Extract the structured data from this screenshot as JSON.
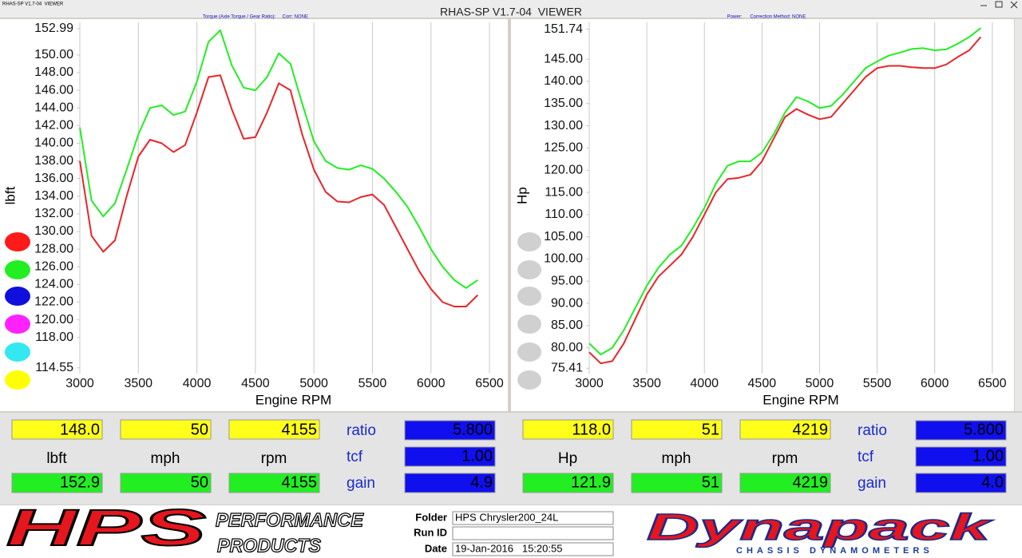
{
  "window": {
    "caption": "RHAS-SP V1.7-04  VIEWER",
    "title": "RHAS-SP V1.7-04  VIEWER"
  },
  "chart_data": [
    {
      "type": "line",
      "subtitle": "Torque (Axle Torque / Gear Ratio):     Corr: NONE",
      "x_label": "Engine RPM",
      "y_label": "lbft",
      "x": [
        3000,
        3100,
        3200,
        3300,
        3400,
        3500,
        3600,
        3700,
        3800,
        3900,
        4000,
        4100,
        4200,
        4300,
        4400,
        4500,
        4600,
        4700,
        4800,
        4900,
        5000,
        5100,
        5200,
        5300,
        5400,
        5500,
        5600,
        5700,
        5800,
        5900,
        6000,
        6100,
        6200,
        6300,
        6400
      ],
      "xlim": [
        3000,
        6650
      ],
      "xticks": [
        3000,
        3500,
        4000,
        4500,
        5000,
        5500,
        6000,
        6500
      ],
      "ylim": [
        113.9,
        153.7
      ],
      "yticks": [
        152.99,
        {
          "value": 150,
          "label": "150.00"
        },
        {
          "value": 148,
          "label": "148.00"
        },
        {
          "value": 146,
          "label": "146.00"
        },
        {
          "value": 144,
          "label": "144.00"
        },
        {
          "value": 142,
          "label": "142.00"
        },
        {
          "value": 140,
          "label": "140.00"
        },
        {
          "value": 138,
          "label": "138.00"
        },
        {
          "value": 136,
          "label": "136.00"
        },
        {
          "value": 134,
          "label": "134.00"
        },
        {
          "value": 132,
          "label": "132.00"
        },
        {
          "value": 130,
          "label": "130.00"
        },
        {
          "value": 128,
          "label": "128.00"
        },
        {
          "value": 126,
          "label": "126.00"
        },
        {
          "value": 124,
          "label": "124.00"
        },
        {
          "value": 122,
          "label": "122.00"
        },
        {
          "value": 120,
          "label": "120.00"
        },
        {
          "value": 118,
          "label": "118.00"
        },
        114.55
      ],
      "grid": "x",
      "series": [
        {
          "color": "#e8252a",
          "values": [
            138,
            129.5,
            127.7,
            129,
            134,
            138.5,
            140.4,
            140,
            139,
            139.8,
            143.5,
            147.5,
            147.7,
            143.8,
            140.5,
            140.7,
            143.5,
            146.8,
            146,
            141,
            137,
            134.5,
            133.4,
            133.3,
            133.9,
            134.2,
            133,
            130.5,
            128,
            125.5,
            123.5,
            122,
            121.5,
            121.5,
            122.8
          ]
        },
        {
          "color": "#22ee22",
          "values": [
            141.8,
            133.5,
            131.7,
            133.2,
            137,
            141,
            144,
            144.3,
            143.2,
            143.6,
            147,
            151.5,
            152.8,
            148.8,
            146.3,
            146,
            147.5,
            150.2,
            149,
            144.5,
            140.2,
            138,
            137.2,
            137,
            137.5,
            137.1,
            136,
            134.5,
            132.8,
            130.5,
            128,
            126,
            124.5,
            123.6,
            124.5
          ]
        }
      ]
    },
    {
      "type": "line",
      "subtitle": "Power:      Correction Method: NONE",
      "x_label": "Engine RPM",
      "y_label": "Hp",
      "x": [
        3000,
        3100,
        3200,
        3300,
        3400,
        3500,
        3600,
        3700,
        3800,
        3900,
        4000,
        4100,
        4200,
        4300,
        4400,
        4500,
        4600,
        4700,
        4800,
        4900,
        5000,
        5100,
        5200,
        5300,
        5400,
        5500,
        5600,
        5700,
        5800,
        5900,
        6000,
        6100,
        6200,
        6300,
        6400
      ],
      "xlim": [
        3000,
        6675
      ],
      "xticks": [
        3000,
        3500,
        4000,
        4500,
        5000,
        5500,
        6000,
        6500
      ],
      "ylim": [
        74.2,
        153.3
      ],
      "yticks": [
        151.74,
        {
          "value": 145,
          "label": "145.00"
        },
        {
          "value": 140,
          "label": "140.00"
        },
        {
          "value": 135,
          "label": "135.00"
        },
        {
          "value": 130,
          "label": "130.00"
        },
        {
          "value": 125,
          "label": "125.00"
        },
        {
          "value": 120,
          "label": "120.00"
        },
        {
          "value": 115,
          "label": "115.00"
        },
        {
          "value": 110,
          "label": "110.00"
        },
        {
          "value": 105,
          "label": "105.00"
        },
        {
          "value": 100,
          "label": "100.00"
        },
        {
          "value": 95,
          "label": "95.00"
        },
        {
          "value": 90,
          "label": "90.00"
        },
        {
          "value": 85,
          "label": "85.00"
        },
        {
          "value": 80,
          "label": "80.00"
        },
        75.41
      ],
      "grid": "x",
      "series": [
        {
          "color": "#e8252a",
          "values": [
            79,
            76.5,
            77,
            81,
            86.5,
            92,
            96,
            98.5,
            101,
            105,
            110,
            115,
            118,
            118.3,
            119,
            122,
            127,
            132,
            133.8,
            132.5,
            131.5,
            132,
            135,
            138,
            141,
            143,
            143.5,
            143.5,
            143.2,
            143,
            143,
            143.8,
            145.5,
            147,
            150
          ]
        },
        {
          "color": "#22ee22",
          "values": [
            81,
            78.5,
            80,
            84,
            89,
            94,
            98,
            101,
            103,
            107,
            111.5,
            117,
            121,
            122,
            122,
            124,
            128,
            133,
            136.5,
            135.5,
            134,
            134.5,
            137,
            140,
            143,
            144.5,
            145.8,
            146.5,
            147.3,
            147.5,
            147,
            147.2,
            148.5,
            150,
            152
          ]
        }
      ]
    }
  ],
  "readouts": [
    {
      "top": [
        "148.0",
        "50",
        "4155"
      ],
      "labels": [
        "lbft",
        "mph",
        "rpm"
      ],
      "bottom": [
        "152.9",
        "50",
        "4155"
      ],
      "params": [
        {
          "label": "ratio",
          "value": "5.800"
        },
        {
          "label": "tcf",
          "value": "1.00"
        },
        {
          "label": "gain",
          "value": "4.9"
        }
      ]
    },
    {
      "top": [
        "118.0",
        "51",
        "4219"
      ],
      "labels": [
        "Hp",
        "mph",
        "rpm"
      ],
      "bottom": [
        "121.9",
        "51",
        "4219"
      ],
      "params": [
        {
          "label": "ratio",
          "value": "5.800"
        },
        {
          "label": "tcf",
          "value": "1.00"
        },
        {
          "label": "gain",
          "value": "4.0"
        }
      ]
    }
  ],
  "footer": {
    "brand": "HPS",
    "brand_line1": "PERFORMANCE",
    "brand_line2": "PRODUCTS",
    "fields": [
      {
        "label": "Folder",
        "value": "HPS Chrysler200_24L"
      },
      {
        "label": "Run ID"
      },
      {
        "label": "Date",
        "value": "19-Jan-2016   15:20:55"
      }
    ],
    "maker": "Dynapack",
    "maker_tagline": "CHASSIS DYNAMOMETERS"
  }
}
